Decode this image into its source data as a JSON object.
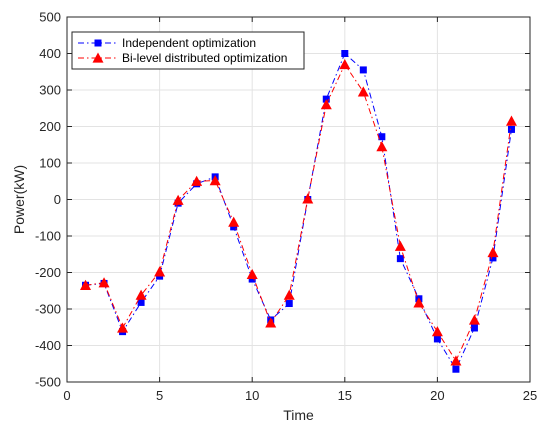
{
  "chart_data": {
    "type": "line",
    "xlabel": "Time",
    "ylabel": "Power(kW)",
    "xlim": [
      0,
      25
    ],
    "ylim": [
      -500,
      500
    ],
    "xticks": [
      0,
      5,
      10,
      15,
      20,
      25
    ],
    "yticks": [
      -500,
      -400,
      -300,
      -200,
      -100,
      0,
      100,
      200,
      300,
      400,
      500
    ],
    "grid": true,
    "legend_position": "top-left",
    "x": [
      1,
      2,
      3,
      4,
      5,
      6,
      7,
      8,
      9,
      10,
      11,
      12,
      13,
      14,
      15,
      16,
      17,
      18,
      19,
      20,
      21,
      22,
      23,
      24
    ],
    "series": [
      {
        "name": "Independent optimization",
        "color": "#0000ff",
        "marker": "square",
        "linestyle": "dash-dot",
        "values": [
          -235,
          -230,
          -362,
          -282,
          -210,
          -10,
          43,
          62,
          -75,
          -218,
          -330,
          -285,
          0,
          275,
          400,
          355,
          172,
          -162,
          -272,
          -382,
          -465,
          -352,
          -160,
          192
        ]
      },
      {
        "name": "Bi-level distributed optimization",
        "color": "#ff0000",
        "marker": "triangle",
        "linestyle": "dash-dot",
        "values": [
          -235,
          -228,
          -352,
          -262,
          -198,
          -2,
          50,
          52,
          -62,
          -205,
          -338,
          -262,
          2,
          260,
          370,
          295,
          145,
          -128,
          -283,
          -362,
          -442,
          -330,
          -145,
          215
        ]
      }
    ]
  }
}
